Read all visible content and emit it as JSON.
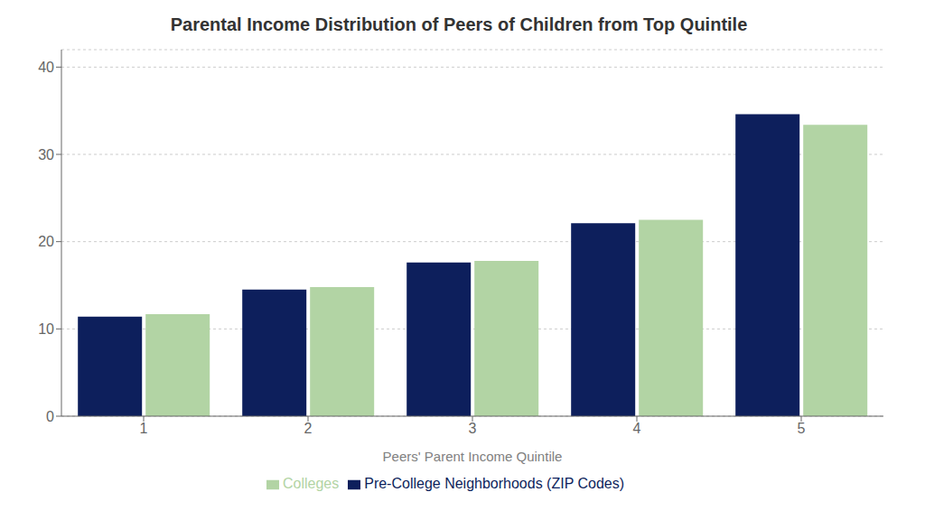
{
  "chart_data": {
    "type": "bar",
    "title": "Parental Income Distribution of Peers of Children from Top Quintile",
    "xlabel": "Peers' Parent Income Quintile",
    "categories": [
      1,
      2,
      3,
      4,
      5
    ],
    "series": [
      {
        "name": "Pre-College Neighborhoods (ZIP Codes)",
        "color": "#0d1f5c",
        "values": [
          11.4,
          14.5,
          17.6,
          22.1,
          34.6
        ]
      },
      {
        "name": "Colleges",
        "color": "#b2d4a4",
        "values": [
          11.7,
          14.8,
          17.8,
          22.5,
          33.4
        ]
      }
    ],
    "ylim": [
      0,
      42
    ],
    "yticks": [
      0,
      10,
      20,
      30,
      40
    ],
    "grid": true,
    "legend": "bottom"
  }
}
